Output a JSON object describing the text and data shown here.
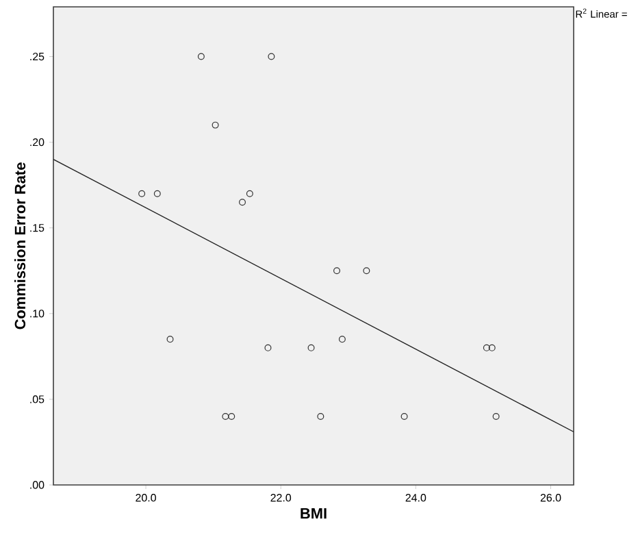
{
  "chart_data": {
    "type": "scatter",
    "xlabel": "BMI",
    "ylabel": "Commission Error Rate",
    "grid": false,
    "xlim": [
      18.63,
      26.34
    ],
    "ylim": [
      0,
      0.279
    ],
    "xticks": [
      {
        "value": 20,
        "label": "20.0"
      },
      {
        "value": 22,
        "label": "22.0"
      },
      {
        "value": 24,
        "label": "24.0"
      },
      {
        "value": 26,
        "label": "26.0"
      }
    ],
    "yticks": [
      {
        "value": 0,
        "label": ".00"
      },
      {
        "value": 0.05,
        "label": ".05"
      },
      {
        "value": 0.1,
        "label": ".10"
      },
      {
        "value": 0.15,
        "label": ".15"
      },
      {
        "value": 0.2,
        "label": ".20"
      },
      {
        "value": 0.25,
        "label": ".25"
      }
    ],
    "series": [
      {
        "color": "#333333",
        "marker": "circle",
        "x": [
          20.82,
          21.86,
          21.03,
          19.94,
          20.17,
          21.43,
          21.54,
          22.83,
          23.27,
          20.36,
          21.81,
          22.45,
          22.91,
          25.05,
          25.13,
          21.18,
          21.27,
          22.59,
          23.83,
          25.19
        ],
        "values": [
          0.25,
          0.25,
          0.21,
          0.17,
          0.17,
          0.165,
          0.17,
          0.125,
          0.125,
          0.085,
          0.08,
          0.08,
          0.085,
          0.08,
          0.08,
          0.04,
          0.04,
          0.04,
          0.04,
          0.04
        ]
      },
      {
        "type": "line",
        "marker": "none",
        "color": "#222222",
        "x": [
          18.63,
          26.34
        ],
        "values": [
          0.19,
          0.031
        ]
      }
    ],
    "annotations": [
      "R$^{2}$ Linear ="
    ]
  }
}
